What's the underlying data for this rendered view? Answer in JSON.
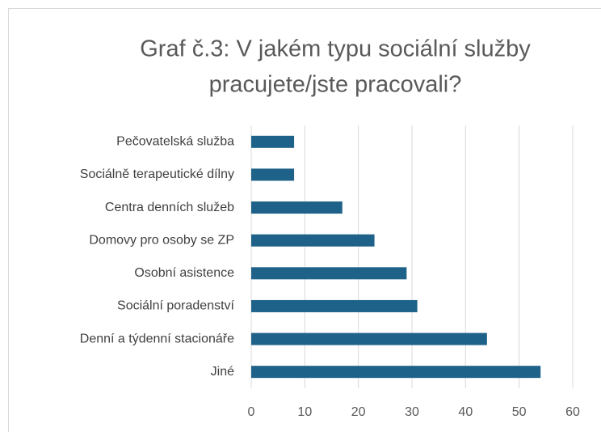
{
  "chart_data": {
    "type": "bar",
    "orientation": "horizontal",
    "title": [
      "Graf č.3:  V jakém typu sociální služby",
      "pracujete/jste pracovali?"
    ],
    "categories": [
      "Pečovatelská služba",
      "Sociálně terapeutické dílny",
      "Centra denních služeb",
      "Domovy pro osoby se ZP",
      "Osobní asistence",
      "Sociální poradenství",
      "Denní a týdenní stacionáře",
      "Jiné"
    ],
    "values": [
      8,
      8,
      17,
      23,
      29,
      31,
      44,
      54
    ],
    "color": "#1f6289",
    "xlim": [
      0,
      60
    ],
    "xticks": [
      0,
      10,
      20,
      30,
      40,
      50,
      60
    ],
    "grid": true
  }
}
